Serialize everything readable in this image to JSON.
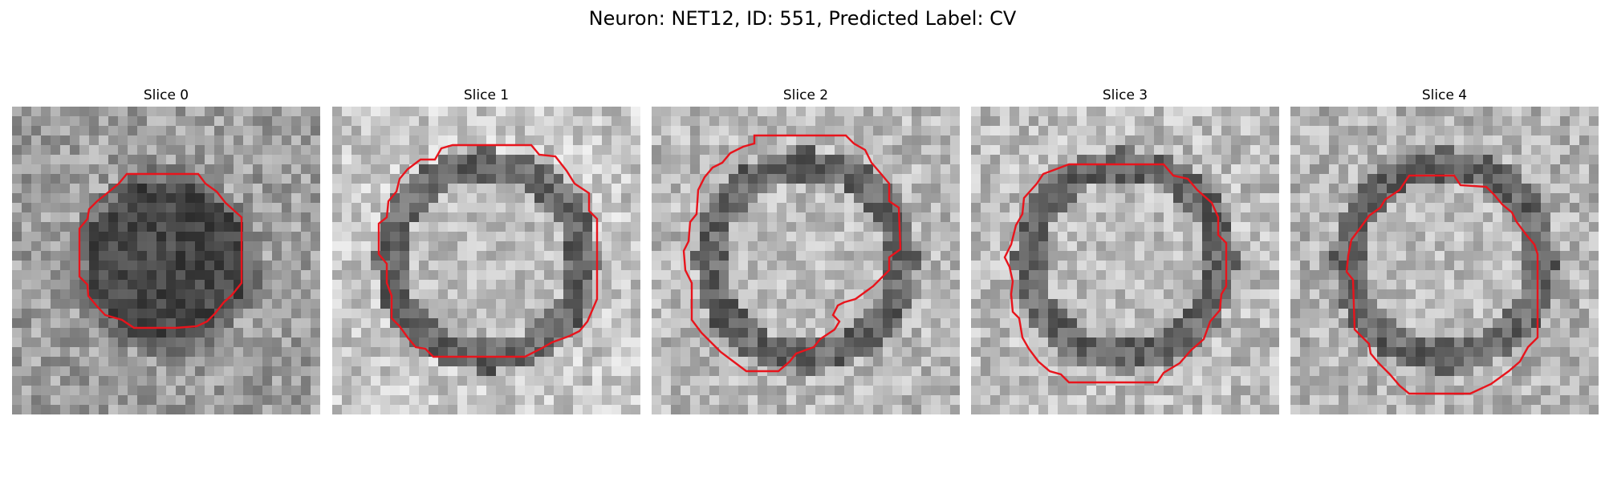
{
  "figure": {
    "title": "Neuron: NET12, ID: 551, Predicted Label: CV"
  },
  "style": {
    "contour_color": "#e8141c",
    "colormap": "grayscale"
  },
  "panels": [
    {
      "title": "Slice 0",
      "center_tone": "dark",
      "ring": "none",
      "background_mean": 0.62
    },
    {
      "title": "Slice 1",
      "center_tone": "light",
      "ring": "dark",
      "background_mean": 0.78
    },
    {
      "title": "Slice 2",
      "center_tone": "light",
      "ring": "dark",
      "background_mean": 0.72
    },
    {
      "title": "Slice 3",
      "center_tone": "light",
      "ring": "dark",
      "background_mean": 0.74
    },
    {
      "title": "Slice 4",
      "center_tone": "light",
      "ring": "dark",
      "background_mean": 0.7
    }
  ]
}
